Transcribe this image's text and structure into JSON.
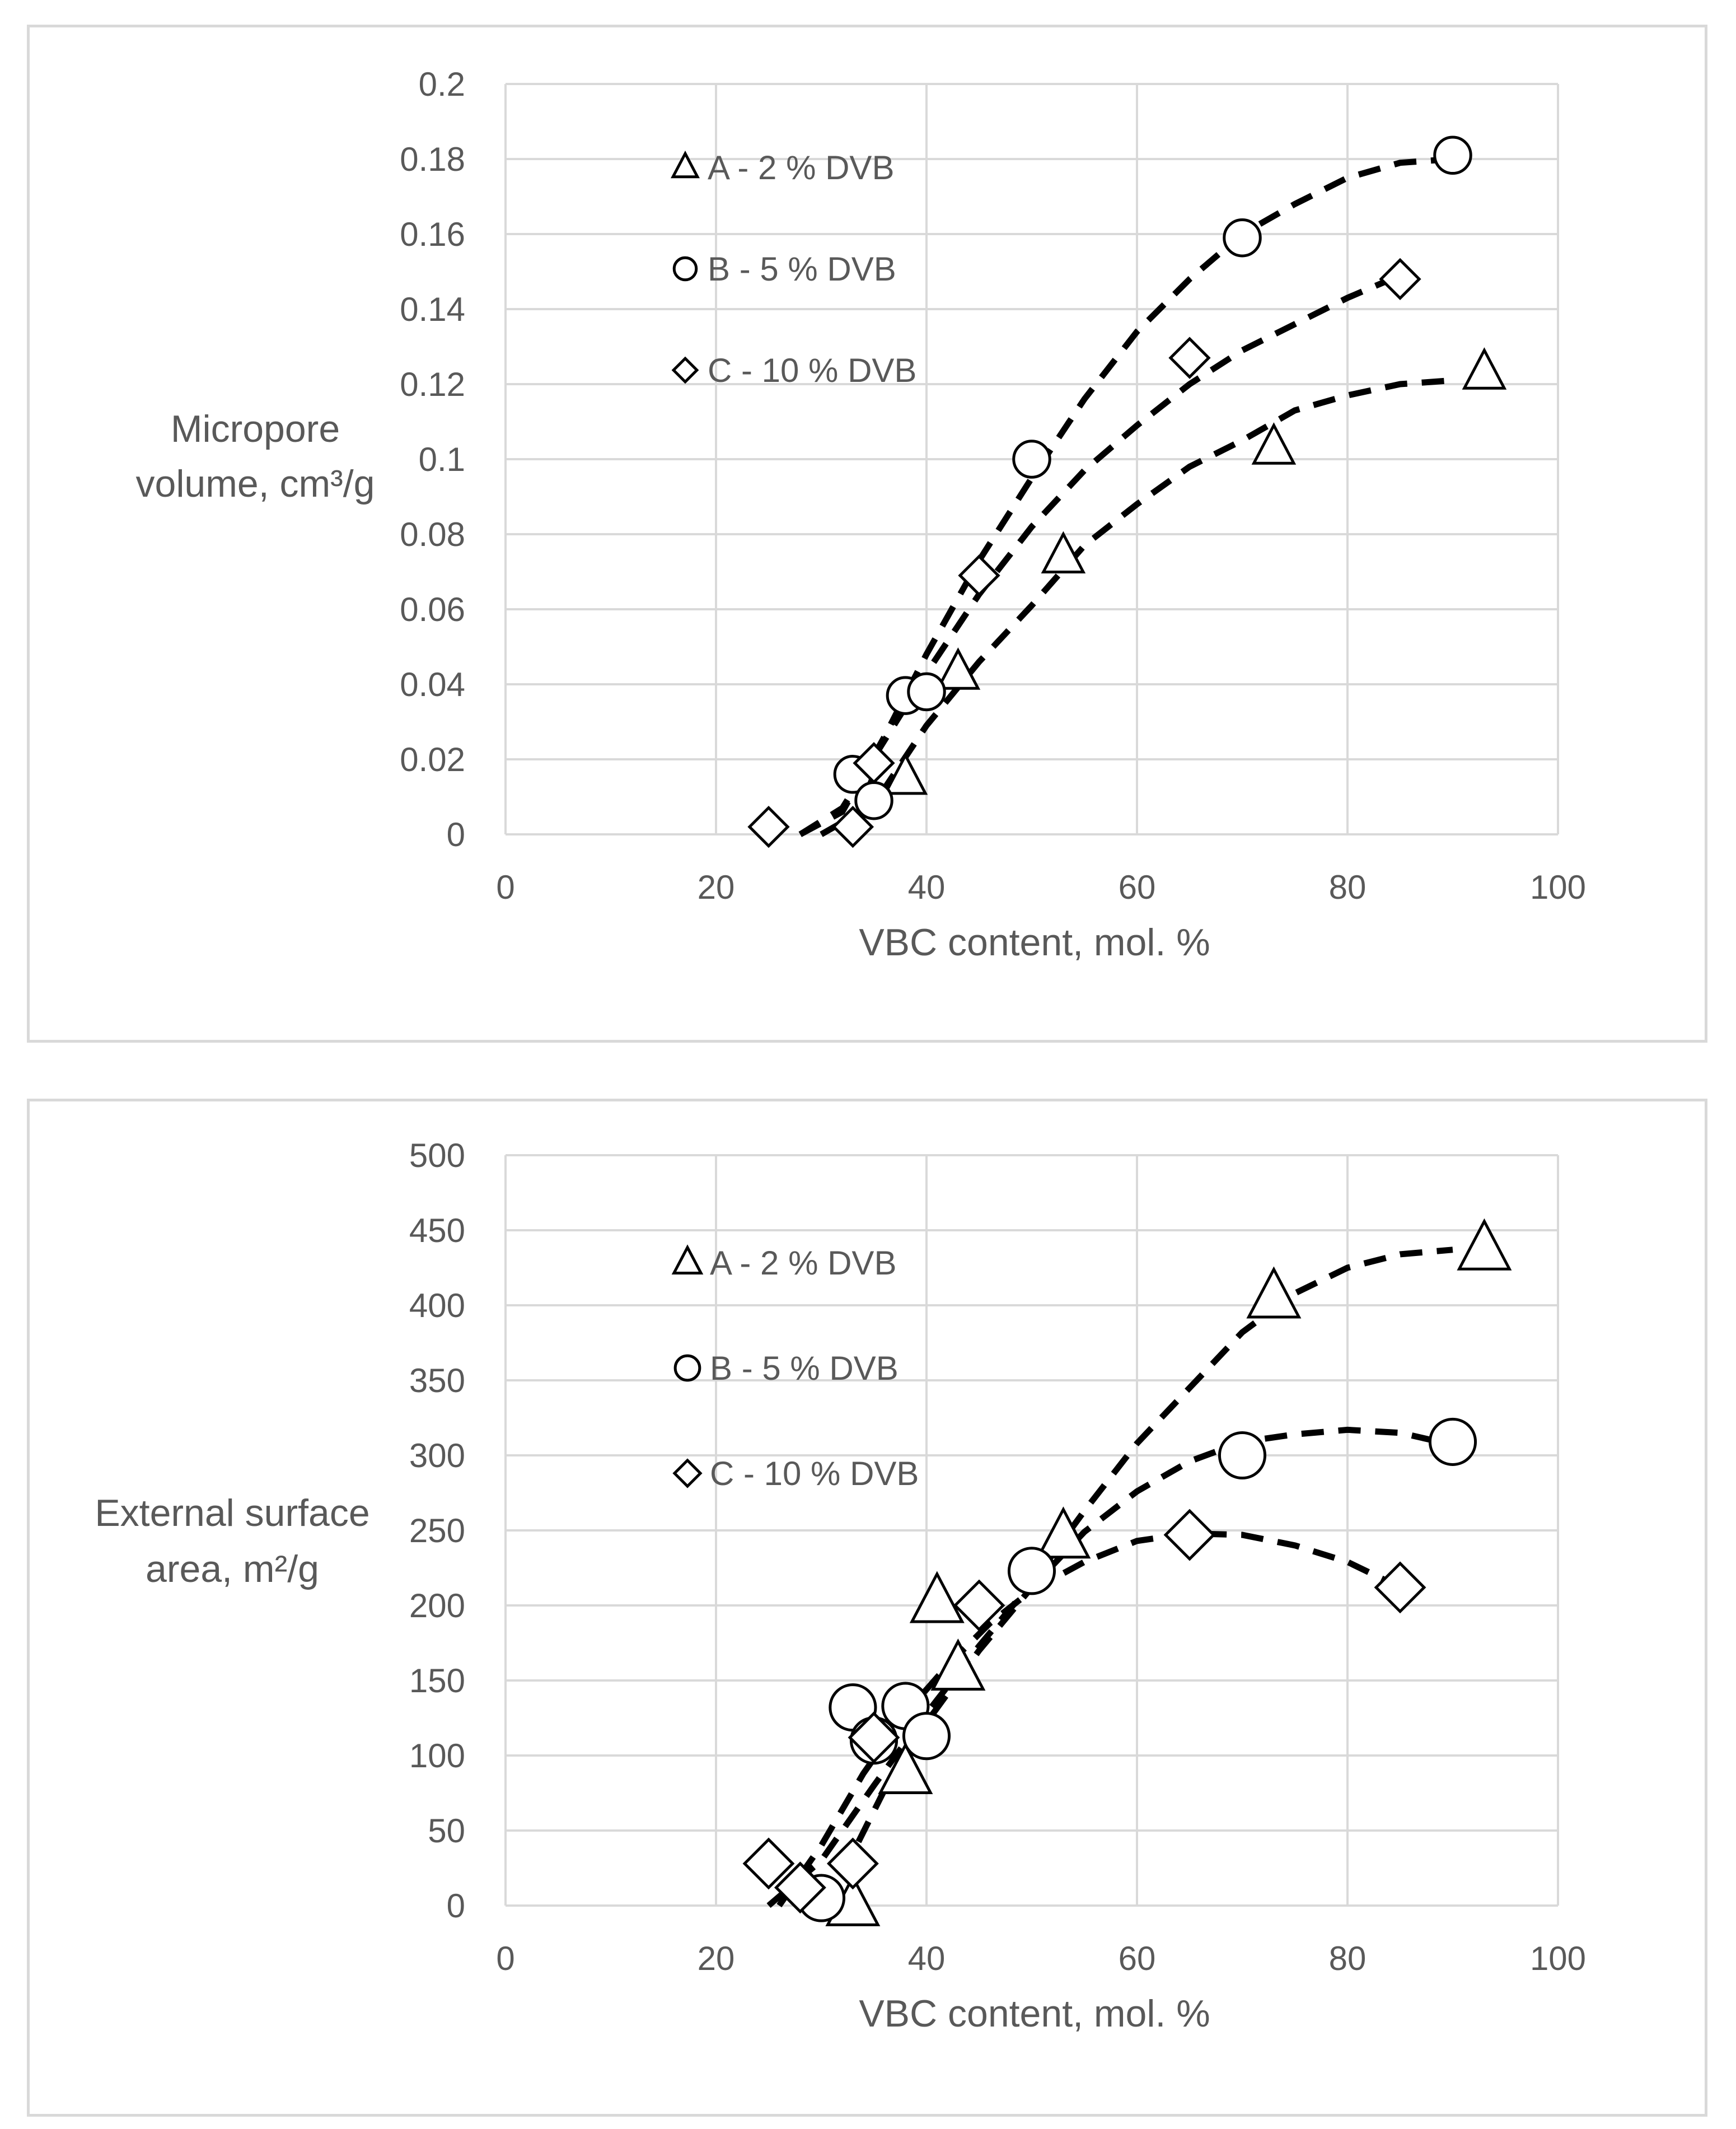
{
  "chart_data": [
    {
      "type": "scatter",
      "title": "",
      "xlabel": "VBC content, mol. %",
      "ylabel_lines": [
        "Micropore",
        "volume,  cm³/g"
      ],
      "xlim": [
        0,
        100
      ],
      "ylim": [
        0,
        0.2
      ],
      "xticks": [
        0,
        20,
        40,
        60,
        80,
        100
      ],
      "yticks": [
        0,
        0.02,
        0.04,
        0.06,
        0.08,
        0.1,
        0.12,
        0.14,
        0.16,
        0.18,
        0.2
      ],
      "ytick_labels": [
        "0",
        "0.02",
        "0.04",
        "0.06",
        "0.08",
        "0.1",
        "0.12",
        "0.14",
        "0.16",
        "0.18",
        "0.2"
      ],
      "grid": true,
      "legend_placement": "top-left",
      "series": [
        {
          "name": "A - 2 % DVB",
          "marker": "triangle",
          "points": [
            [
              38,
              0.015
            ],
            [
              43,
              0.043
            ],
            [
              53,
              0.074
            ],
            [
              73,
              0.103
            ],
            [
              93,
              0.123
            ]
          ],
          "trend": [
            [
              30,
              0.0
            ],
            [
              35,
              0.008
            ],
            [
              40,
              0.029
            ],
            [
              45,
              0.046
            ],
            [
              50,
              0.061
            ],
            [
              55,
              0.077
            ],
            [
              60,
              0.088
            ],
            [
              65,
              0.098
            ],
            [
              70,
              0.105
            ],
            [
              75,
              0.113
            ],
            [
              80,
              0.117
            ],
            [
              85,
              0.12
            ],
            [
              90,
              0.121
            ]
          ]
        },
        {
          "name": "B - 5 % DVB",
          "marker": "circle",
          "points": [
            [
              33,
              0.016
            ],
            [
              35,
              0.009
            ],
            [
              38,
              0.037
            ],
            [
              40,
              0.038
            ],
            [
              50,
              0.1
            ],
            [
              70,
              0.159
            ],
            [
              90,
              0.181
            ]
          ],
          "trend": [
            [
              28,
              0.0
            ],
            [
              32,
              0.006
            ],
            [
              36,
              0.026
            ],
            [
              40,
              0.048
            ],
            [
              45,
              0.073
            ],
            [
              50,
              0.095
            ],
            [
              55,
              0.116
            ],
            [
              60,
              0.134
            ],
            [
              65,
              0.148
            ],
            [
              70,
              0.16
            ],
            [
              75,
              0.168
            ],
            [
              80,
              0.175
            ],
            [
              85,
              0.179
            ],
            [
              90,
              0.18
            ]
          ]
        },
        {
          "name": "C - 10 % DVB",
          "marker": "diamond",
          "points": [
            [
              25,
              0.002
            ],
            [
              33,
              0.002
            ],
            [
              35,
              0.019
            ],
            [
              45,
              0.069
            ],
            [
              65,
              0.127
            ],
            [
              85,
              0.148
            ]
          ],
          "trend": [
            [
              28,
              0.0
            ],
            [
              32,
              0.007
            ],
            [
              36,
              0.025
            ],
            [
              40,
              0.043
            ],
            [
              45,
              0.064
            ],
            [
              50,
              0.082
            ],
            [
              55,
              0.097
            ],
            [
              60,
              0.109
            ],
            [
              65,
              0.12
            ],
            [
              70,
              0.129
            ],
            [
              75,
              0.136
            ],
            [
              80,
              0.143
            ],
            [
              85,
              0.149
            ]
          ]
        }
      ]
    },
    {
      "type": "scatter",
      "title": "",
      "xlabel": "VBC content, mol. %",
      "ylabel_lines": [
        "External surface",
        "area,  m²/g"
      ],
      "xlim": [
        0,
        100
      ],
      "ylim": [
        0,
        500
      ],
      "xticks": [
        0,
        20,
        40,
        60,
        80,
        100
      ],
      "yticks": [
        0,
        50,
        100,
        150,
        200,
        250,
        300,
        350,
        400,
        450,
        500
      ],
      "ytick_labels": [
        "0",
        "50",
        "100",
        "150",
        "200",
        "250",
        "300",
        "350",
        "400",
        "450",
        "500"
      ],
      "grid": true,
      "legend_placement": "top-left",
      "series": [
        {
          "name": "A - 2 % DVB",
          "marker": "triangle",
          "points": [
            [
              33,
              0
            ],
            [
              38,
              88
            ],
            [
              41,
              202
            ],
            [
              43,
              157
            ],
            [
              53,
              245
            ],
            [
              73,
              405
            ],
            [
              93,
              437
            ]
          ],
          "trend": [
            [
              25,
              0
            ],
            [
              30,
              30
            ],
            [
              35,
              80
            ],
            [
              40,
              128
            ],
            [
              45,
              173
            ],
            [
              50,
              215
            ],
            [
              55,
              263
            ],
            [
              60,
              308
            ],
            [
              65,
              345
            ],
            [
              70,
              382
            ],
            [
              75,
              408
            ],
            [
              80,
              425
            ],
            [
              85,
              434
            ],
            [
              90,
              437
            ]
          ]
        },
        {
          "name": "B - 5 % DVB",
          "marker": "circle",
          "points": [
            [
              30,
              5
            ],
            [
              33,
              132
            ],
            [
              35,
              110
            ],
            [
              38,
              133
            ],
            [
              40,
              113
            ],
            [
              50,
              223
            ],
            [
              70,
              300
            ],
            [
              90,
              309
            ]
          ],
          "trend": [
            [
              30,
              0
            ],
            [
              33,
              35
            ],
            [
              36,
              77
            ],
            [
              40,
              122
            ],
            [
              45,
              170
            ],
            [
              50,
              212
            ],
            [
              55,
              249
            ],
            [
              60,
              276
            ],
            [
              65,
              296
            ],
            [
              70,
              309
            ],
            [
              75,
              314
            ],
            [
              80,
              317
            ],
            [
              85,
              315
            ],
            [
              90,
              307
            ]
          ]
        },
        {
          "name": "C - 10 % DVB",
          "marker": "diamond",
          "points": [
            [
              25,
              28
            ],
            [
              28,
              12
            ],
            [
              33,
              28
            ],
            [
              35,
              112
            ],
            [
              45,
              200
            ],
            [
              65,
              247
            ],
            [
              85,
              212
            ]
          ],
          "trend": [
            [
              26,
              0
            ],
            [
              30,
              40
            ],
            [
              34,
              88
            ],
            [
              38,
              128
            ],
            [
              42,
              160
            ],
            [
              46,
              188
            ],
            [
              50,
              210
            ],
            [
              55,
              229
            ],
            [
              60,
              243
            ],
            [
              65,
              248
            ],
            [
              70,
              247
            ],
            [
              75,
              240
            ],
            [
              80,
              229
            ],
            [
              85,
              212
            ]
          ]
        }
      ]
    }
  ]
}
